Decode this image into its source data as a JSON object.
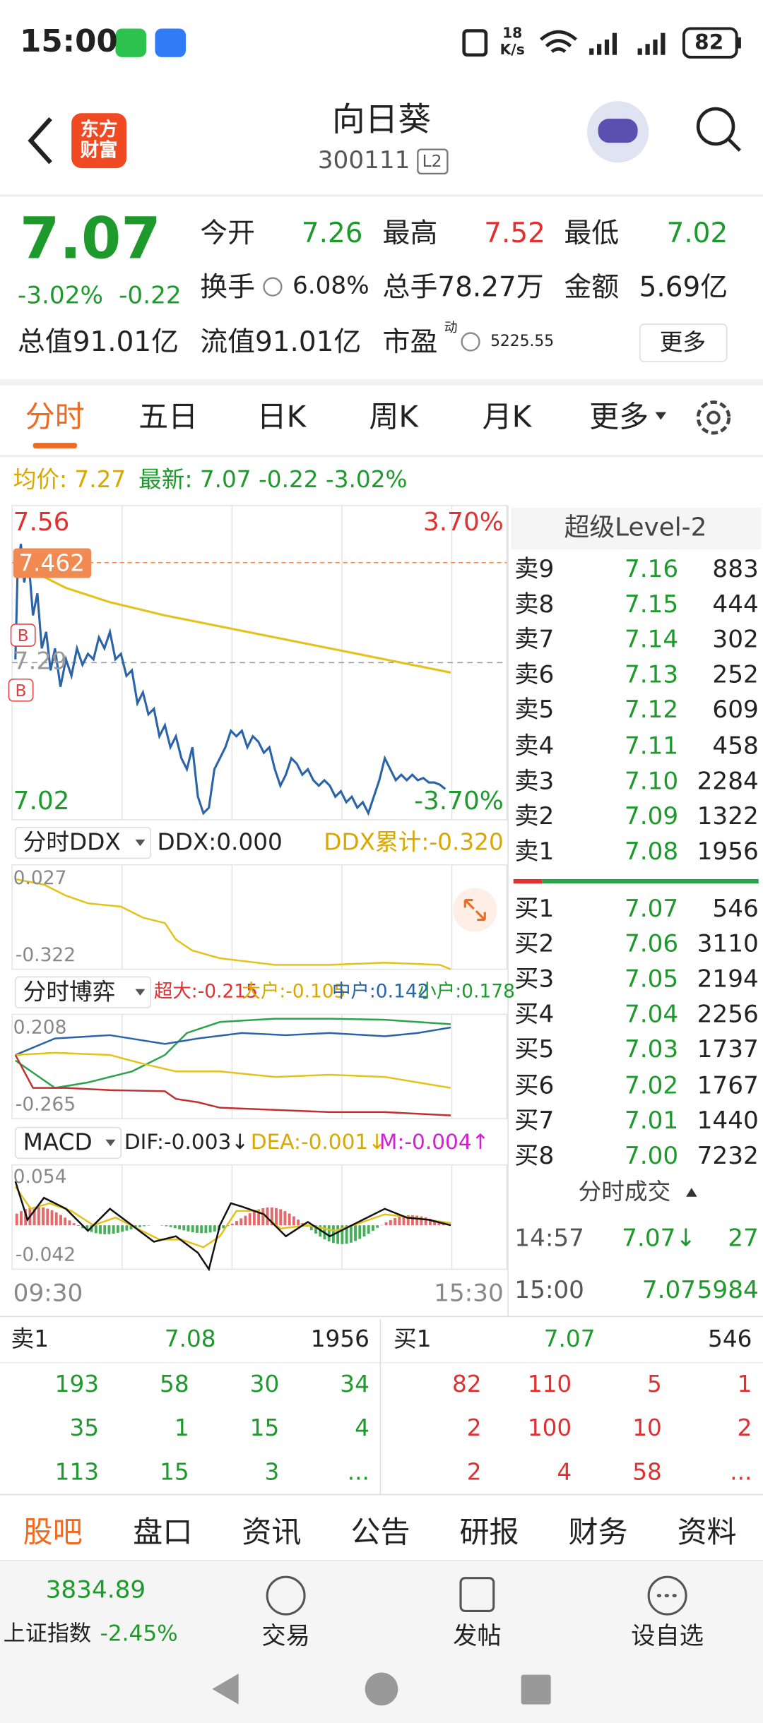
{
  "status_bar": {
    "time": "15:00",
    "net_speed": "18",
    "net_unit": "K/s",
    "battery": "82"
  },
  "header": {
    "logo": "东方财富",
    "title": "向日葵",
    "code": "300111",
    "level": "L2"
  },
  "quote": {
    "price": "7.07",
    "change_pct": "-3.02%",
    "change": "-0.22",
    "open_label": "今开",
    "open": "7.26",
    "high_label": "最高",
    "high": "7.52",
    "low_label": "最低",
    "low": "7.02",
    "turnover_label": "换手",
    "turnover": "6.08%",
    "volume": "总手78.27万",
    "amount_label": "金额",
    "amount": "5.69亿",
    "market_cap": "总值91.01亿",
    "float_cap": "流值91.01亿",
    "pe_label": "市盈",
    "pe_sup": "动",
    "pe": "5225.55",
    "more": "更多"
  },
  "tabs": [
    "分时",
    "五日",
    "日K",
    "周K",
    "月K",
    "更多"
  ],
  "info": {
    "avg": "均价: 7.27",
    "latest": "最新: 7.07 -0.22 -3.02%"
  },
  "price_chart": {
    "high": "7.56",
    "high_pct": "3.70%",
    "low": "7.02",
    "low_pct": "-3.70%",
    "prev_close": "7.29",
    "marker": "7.462",
    "buy_mark": "B",
    "start": "09:30",
    "end": "15:30"
  },
  "ddx": {
    "selector": "分时DDX",
    "ddx": "DDX:0.000",
    "cumulative": "DDX累计:-0.320",
    "max": "0.027",
    "min": "-0.322"
  },
  "game": {
    "selector": "分时博弈",
    "super": "超大:-0.215",
    "large": "大户:-0.105",
    "medium": "中户:0.142",
    "small": "小户:0.178",
    "max": "0.208",
    "min": "-0.265"
  },
  "macd": {
    "selector": "MACD",
    "dif": "DIF:-0.003↓",
    "dea": "DEA:-0.001↓",
    "m": "M:-0.004↑",
    "max": "0.054",
    "min": "-0.042"
  },
  "order_book": {
    "title": "超级Level-2",
    "asks": [
      [
        "卖9",
        "7.16",
        "883"
      ],
      [
        "卖8",
        "7.15",
        "444"
      ],
      [
        "卖7",
        "7.14",
        "302"
      ],
      [
        "卖6",
        "7.13",
        "252"
      ],
      [
        "卖5",
        "7.12",
        "609"
      ],
      [
        "卖4",
        "7.11",
        "458"
      ],
      [
        "卖3",
        "7.10",
        "2284"
      ],
      [
        "卖2",
        "7.09",
        "1322"
      ],
      [
        "卖1",
        "7.08",
        "1956"
      ]
    ],
    "bids": [
      [
        "买1",
        "7.07",
        "546"
      ],
      [
        "买2",
        "7.06",
        "3110"
      ],
      [
        "买3",
        "7.05",
        "2194"
      ],
      [
        "买4",
        "7.04",
        "2256"
      ],
      [
        "买5",
        "7.03",
        "1737"
      ],
      [
        "买6",
        "7.02",
        "1767"
      ],
      [
        "买7",
        "7.01",
        "1440"
      ],
      [
        "买8",
        "7.00",
        "7232"
      ]
    ],
    "trades_title": "分时成交",
    "trades": [
      [
        "14:57",
        "7.07↓",
        "27"
      ],
      [
        "15:00",
        "7.07",
        "5984"
      ]
    ]
  },
  "queue": {
    "sell": {
      "label": "卖1",
      "price": "7.08",
      "volume": "1956",
      "rows": [
        [
          "193",
          "58",
          "30",
          "34"
        ],
        [
          "35",
          "1",
          "15",
          "4"
        ],
        [
          "113",
          "15",
          "3",
          "..."
        ]
      ]
    },
    "buy": {
      "label": "买1",
      "price": "7.07",
      "volume": "546",
      "rows": [
        [
          "82",
          "110",
          "5",
          "1"
        ],
        [
          "2",
          "100",
          "10",
          "2"
        ],
        [
          "2",
          "4",
          "58",
          "..."
        ]
      ]
    }
  },
  "bottom_tabs": [
    "股吧",
    "盘口",
    "资讯",
    "公告",
    "研报",
    "财务",
    "资料"
  ],
  "footer": {
    "index_value": "3834.89",
    "index_name": "上证指数",
    "index_change": "-2.45%",
    "trade": "交易",
    "post": "发帖",
    "watch": "设自选"
  }
}
